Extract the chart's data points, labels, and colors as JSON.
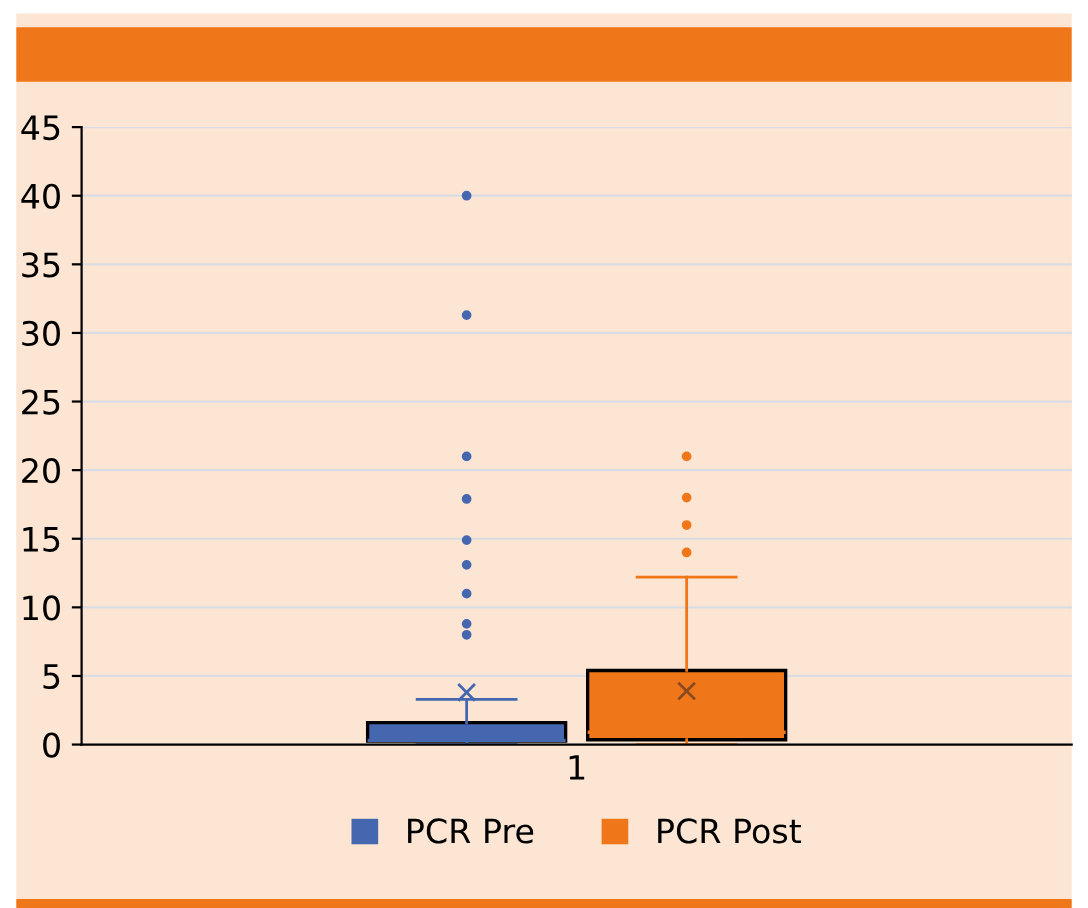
{
  "chart_data": {
    "type": "box",
    "categories": [
      "1"
    ],
    "series": [
      {
        "name": "PCR Pre",
        "color": "#4567b0",
        "boxes": [
          {
            "low": 0,
            "q1": 0.25,
            "median": 0.3,
            "q3": 1.6,
            "high": 3.3,
            "mean": 3.8,
            "outliers": [
              40,
              31.3,
              21,
              17.9,
              14.9,
              13.1,
              11,
              8.8,
              8
            ]
          }
        ]
      },
      {
        "name": "PCR Post",
        "color": "#ef7719",
        "boxes": [
          {
            "low": 0,
            "q1": 0.35,
            "median": 0.9,
            "q3": 5.4,
            "high": 12.2,
            "mean": 3.9,
            "outliers": [
              21,
              18,
              16,
              14
            ]
          }
        ]
      }
    ],
    "ylim": [
      0,
      45
    ],
    "yticks": [
      0,
      5,
      10,
      15,
      20,
      25,
      30,
      35,
      40,
      45
    ],
    "grid": "y",
    "legend": "bottom"
  }
}
